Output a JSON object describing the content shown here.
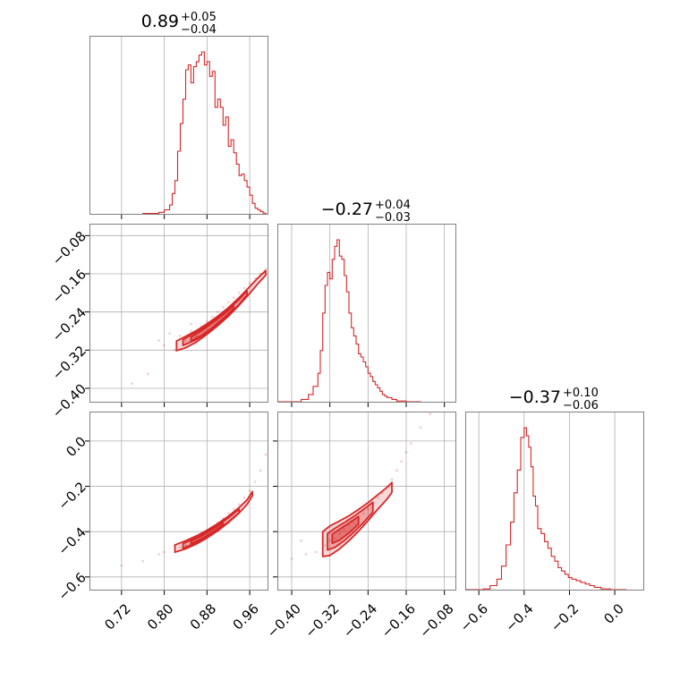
{
  "chart_data": {
    "type": "corner",
    "color": "#d62728",
    "grid": true,
    "parameters": [
      {
        "range": [
          0.66,
          0.995
        ],
        "title": {
          "median": "0.89",
          "plus": "+0.05",
          "minus": "−0.04"
        },
        "ticks": [
          0.72,
          0.8,
          0.88,
          0.96
        ],
        "tick_labels": [
          "0.72",
          "0.80",
          "0.88",
          "0.96"
        ]
      },
      {
        "range": [
          -0.43,
          -0.055
        ],
        "title": {
          "median": "−0.27",
          "plus": "+0.04",
          "minus": "−0.03"
        },
        "ticks": [
          -0.4,
          -0.32,
          -0.24,
          -0.16,
          -0.08
        ],
        "tick_labels": [
          "−0.40",
          "−0.32",
          "−0.24",
          "−0.16",
          "−0.08"
        ]
      },
      {
        "range": [
          -0.66,
          0.13
        ],
        "title": {
          "median": "−0.37",
          "plus": "+0.10",
          "minus": "−0.06"
        },
        "ticks": [
          -0.6,
          -0.4,
          -0.2,
          0.0
        ],
        "tick_labels": [
          "−0.6",
          "−0.4",
          "−0.2",
          "0.0"
        ]
      }
    ],
    "histograms": [
      {
        "param": 0,
        "bin_edges": [
          0.7,
          0.76,
          0.79,
          0.8,
          0.81,
          0.815,
          0.82,
          0.825,
          0.83,
          0.835,
          0.84,
          0.845,
          0.85,
          0.855,
          0.86,
          0.865,
          0.87,
          0.875,
          0.88,
          0.885,
          0.89,
          0.895,
          0.9,
          0.905,
          0.91,
          0.915,
          0.92,
          0.925,
          0.93,
          0.935,
          0.94,
          0.945,
          0.95,
          0.955,
          0.96,
          0.965,
          0.97,
          0.975,
          0.98,
          0.985,
          0.99,
          0.995
        ],
        "counts": [
          0.002,
          0.008,
          0.015,
          0.03,
          0.06,
          0.13,
          0.21,
          0.39,
          0.56,
          0.71,
          0.89,
          0.92,
          0.81,
          0.91,
          0.94,
          0.98,
          1.0,
          0.92,
          0.94,
          0.85,
          0.88,
          0.66,
          0.71,
          0.66,
          0.55,
          0.6,
          0.42,
          0.46,
          0.38,
          0.31,
          0.24,
          0.25,
          0.21,
          0.17,
          0.12,
          0.07,
          0.04,
          0.03,
          0.02,
          0.01,
          0.0
        ]
      },
      {
        "param": 1,
        "bin_edges": [
          -0.43,
          -0.38,
          -0.365,
          -0.355,
          -0.345,
          -0.34,
          -0.335,
          -0.33,
          -0.325,
          -0.32,
          -0.315,
          -0.31,
          -0.305,
          -0.3,
          -0.295,
          -0.29,
          -0.285,
          -0.28,
          -0.275,
          -0.27,
          -0.265,
          -0.26,
          -0.255,
          -0.25,
          -0.245,
          -0.24,
          -0.235,
          -0.23,
          -0.225,
          -0.22,
          -0.215,
          -0.21,
          -0.205,
          -0.2,
          -0.19,
          -0.18,
          -0.16,
          -0.13,
          -0.055
        ],
        "counts": [
          0.005,
          0.02,
          0.05,
          0.1,
          0.18,
          0.32,
          0.55,
          0.72,
          0.8,
          0.76,
          0.88,
          0.96,
          1.0,
          0.9,
          0.88,
          0.78,
          0.68,
          0.55,
          0.46,
          0.41,
          0.36,
          0.3,
          0.28,
          0.25,
          0.22,
          0.18,
          0.16,
          0.13,
          0.11,
          0.09,
          0.07,
          0.05,
          0.04,
          0.03,
          0.02,
          0.01,
          0.005,
          0.0
        ]
      },
      {
        "param": 2,
        "bin_edges": [
          -0.66,
          -0.58,
          -0.55,
          -0.52,
          -0.5,
          -0.48,
          -0.46,
          -0.445,
          -0.43,
          -0.415,
          -0.4,
          -0.39,
          -0.38,
          -0.37,
          -0.36,
          -0.35,
          -0.34,
          -0.325,
          -0.31,
          -0.295,
          -0.28,
          -0.265,
          -0.25,
          -0.235,
          -0.22,
          -0.205,
          -0.19,
          -0.17,
          -0.15,
          -0.13,
          -0.11,
          -0.09,
          -0.06,
          -0.02,
          0.05,
          0.13
        ],
        "counts": [
          0.005,
          0.01,
          0.03,
          0.07,
          0.15,
          0.28,
          0.42,
          0.6,
          0.74,
          0.94,
          1.0,
          0.95,
          0.88,
          0.76,
          0.58,
          0.52,
          0.38,
          0.35,
          0.3,
          0.26,
          0.21,
          0.18,
          0.14,
          0.12,
          0.1,
          0.08,
          0.07,
          0.06,
          0.05,
          0.04,
          0.03,
          0.02,
          0.01,
          0.005,
          0.002
        ]
      }
    ],
    "scatter_samples": [
      {
        "x_param": 0,
        "y_param": 1,
        "points": [
          [
            0.83,
            -0.29
          ],
          [
            0.84,
            -0.3
          ],
          [
            0.85,
            -0.28
          ],
          [
            0.86,
            -0.29
          ],
          [
            0.87,
            -0.27
          ],
          [
            0.88,
            -0.26
          ],
          [
            0.89,
            -0.25
          ],
          [
            0.9,
            -0.24
          ],
          [
            0.91,
            -0.23
          ],
          [
            0.92,
            -0.22
          ],
          [
            0.93,
            -0.21
          ],
          [
            0.94,
            -0.2
          ],
          [
            0.95,
            -0.19
          ],
          [
            0.96,
            -0.18
          ],
          [
            0.97,
            -0.17
          ],
          [
            0.98,
            -0.16
          ],
          [
            0.99,
            -0.15
          ],
          [
            0.8,
            -0.31
          ],
          [
            0.79,
            -0.3
          ],
          [
            0.82,
            -0.32
          ],
          [
            0.84,
            -0.315
          ],
          [
            0.86,
            -0.305
          ],
          [
            0.81,
            -0.285
          ],
          [
            0.85,
            -0.265
          ],
          [
            0.77,
            -0.37
          ],
          [
            0.74,
            -0.39
          ],
          [
            0.9,
            -0.26
          ],
          [
            0.93,
            -0.235
          ],
          [
            0.96,
            -0.2
          ],
          [
            0.995,
            -0.135
          ]
        ]
      },
      {
        "x_param": 0,
        "y_param": 2,
        "points": [
          [
            0.83,
            -0.47
          ],
          [
            0.84,
            -0.46
          ],
          [
            0.85,
            -0.45
          ],
          [
            0.86,
            -0.43
          ],
          [
            0.87,
            -0.42
          ],
          [
            0.88,
            -0.4
          ],
          [
            0.89,
            -0.38
          ],
          [
            0.9,
            -0.36
          ],
          [
            0.91,
            -0.34
          ],
          [
            0.92,
            -0.32
          ],
          [
            0.93,
            -0.3
          ],
          [
            0.94,
            -0.28
          ],
          [
            0.95,
            -0.25
          ],
          [
            0.96,
            -0.22
          ],
          [
            0.97,
            -0.18
          ],
          [
            0.98,
            -0.13
          ],
          [
            0.99,
            -0.06
          ],
          [
            0.995,
            0.03
          ],
          [
            0.8,
            -0.49
          ],
          [
            0.79,
            -0.5
          ],
          [
            0.76,
            -0.53
          ],
          [
            0.72,
            -0.55
          ],
          [
            0.82,
            -0.46
          ]
        ]
      },
      {
        "x_param": 1,
        "y_param": 2,
        "points": [
          [
            -0.33,
            -0.46
          ],
          [
            -0.32,
            -0.44
          ],
          [
            -0.31,
            -0.43
          ],
          [
            -0.3,
            -0.41
          ],
          [
            -0.29,
            -0.39
          ],
          [
            -0.28,
            -0.37
          ],
          [
            -0.27,
            -0.36
          ],
          [
            -0.26,
            -0.34
          ],
          [
            -0.25,
            -0.32
          ],
          [
            -0.24,
            -0.3
          ],
          [
            -0.23,
            -0.28
          ],
          [
            -0.22,
            -0.25
          ],
          [
            -0.21,
            -0.23
          ],
          [
            -0.2,
            -0.2
          ],
          [
            -0.19,
            -0.17
          ],
          [
            -0.18,
            -0.13
          ],
          [
            -0.17,
            -0.09
          ],
          [
            -0.16,
            -0.05
          ],
          [
            -0.15,
            -0.01
          ],
          [
            -0.13,
            0.06
          ],
          [
            -0.11,
            0.12
          ],
          [
            -0.35,
            -0.49
          ],
          [
            -0.37,
            -0.5
          ],
          [
            -0.4,
            -0.52
          ],
          [
            -0.38,
            -0.44
          ],
          [
            -0.3,
            -0.46
          ],
          [
            -0.25,
            -0.36
          ]
        ]
      }
    ],
    "contours": [
      {
        "x_param": 0,
        "y_param": 1,
        "level": 1,
        "ridge": [
          [
            0.823,
            -0.311
          ],
          [
            0.84,
            -0.303
          ],
          [
            0.86,
            -0.291
          ],
          [
            0.88,
            -0.276
          ],
          [
            0.9,
            -0.259
          ],
          [
            0.92,
            -0.24
          ],
          [
            0.94,
            -0.218
          ],
          [
            0.96,
            -0.194
          ],
          [
            0.975,
            -0.175
          ],
          [
            0.99,
            -0.158
          ]
        ],
        "width": [
          0.01,
          0.012,
          0.012,
          0.011,
          0.01,
          0.009,
          0.008,
          0.007,
          0.006,
          0.005
        ]
      },
      {
        "x_param": 0,
        "y_param": 1,
        "level": 2,
        "ridge": [
          [
            0.835,
            -0.304
          ],
          [
            0.86,
            -0.29
          ],
          [
            0.88,
            -0.276
          ],
          [
            0.9,
            -0.259
          ],
          [
            0.92,
            -0.241
          ],
          [
            0.94,
            -0.219
          ],
          [
            0.955,
            -0.2
          ]
        ],
        "width": [
          0.006,
          0.008,
          0.008,
          0.007,
          0.006,
          0.005,
          0.004
        ]
      },
      {
        "x_param": 0,
        "y_param": 1,
        "level": 3,
        "ridge": [
          [
            0.85,
            -0.297
          ],
          [
            0.87,
            -0.284
          ],
          [
            0.89,
            -0.268
          ],
          [
            0.91,
            -0.25
          ],
          [
            0.93,
            -0.23
          ]
        ],
        "width": [
          0.004,
          0.005,
          0.005,
          0.004,
          0.003
        ]
      },
      {
        "x_param": 0,
        "y_param": 2,
        "level": 1,
        "ridge": [
          [
            0.82,
            -0.475
          ],
          [
            0.84,
            -0.458
          ],
          [
            0.86,
            -0.437
          ],
          [
            0.88,
            -0.411
          ],
          [
            0.9,
            -0.381
          ],
          [
            0.92,
            -0.346
          ],
          [
            0.94,
            -0.306
          ],
          [
            0.955,
            -0.27
          ],
          [
            0.965,
            -0.232
          ]
        ],
        "width": [
          0.016,
          0.018,
          0.018,
          0.017,
          0.016,
          0.014,
          0.012,
          0.01,
          0.009
        ]
      },
      {
        "x_param": 0,
        "y_param": 2,
        "level": 2,
        "ridge": [
          [
            0.835,
            -0.463
          ],
          [
            0.86,
            -0.438
          ],
          [
            0.88,
            -0.412
          ],
          [
            0.9,
            -0.382
          ],
          [
            0.92,
            -0.348
          ],
          [
            0.94,
            -0.309
          ]
        ],
        "width": [
          0.01,
          0.011,
          0.011,
          0.01,
          0.009,
          0.008
        ]
      },
      {
        "x_param": 0,
        "y_param": 2,
        "level": 3,
        "ridge": [
          [
            0.85,
            -0.448
          ],
          [
            0.87,
            -0.425
          ],
          [
            0.89,
            -0.397
          ],
          [
            0.91,
            -0.366
          ]
        ],
        "width": [
          0.006,
          0.006,
          0.006,
          0.005
        ]
      },
      {
        "x_param": 1,
        "y_param": 2,
        "level": 1,
        "ridge": [
          [
            -0.335,
            -0.455
          ],
          [
            -0.32,
            -0.44
          ],
          [
            -0.3,
            -0.415
          ],
          [
            -0.28,
            -0.385
          ],
          [
            -0.26,
            -0.35
          ],
          [
            -0.24,
            -0.312
          ],
          [
            -0.22,
            -0.27
          ],
          [
            -0.2,
            -0.23
          ],
          [
            -0.19,
            -0.205
          ]
        ],
        "width": [
          0.055,
          0.065,
          0.062,
          0.055,
          0.048,
          0.04,
          0.032,
          0.026,
          0.022
        ]
      },
      {
        "x_param": 1,
        "y_param": 2,
        "level": 2,
        "ridge": [
          [
            -0.325,
            -0.445
          ],
          [
            -0.31,
            -0.428
          ],
          [
            -0.29,
            -0.4
          ],
          [
            -0.27,
            -0.368
          ],
          [
            -0.25,
            -0.332
          ],
          [
            -0.23,
            -0.292
          ]
        ],
        "width": [
          0.036,
          0.042,
          0.04,
          0.035,
          0.029,
          0.022
        ]
      },
      {
        "x_param": 1,
        "y_param": 2,
        "level": 3,
        "ridge": [
          [
            -0.315,
            -0.432
          ],
          [
            -0.3,
            -0.414
          ],
          [
            -0.28,
            -0.384
          ],
          [
            -0.26,
            -0.35
          ]
        ],
        "width": [
          0.02,
          0.024,
          0.022,
          0.017
        ]
      }
    ]
  }
}
